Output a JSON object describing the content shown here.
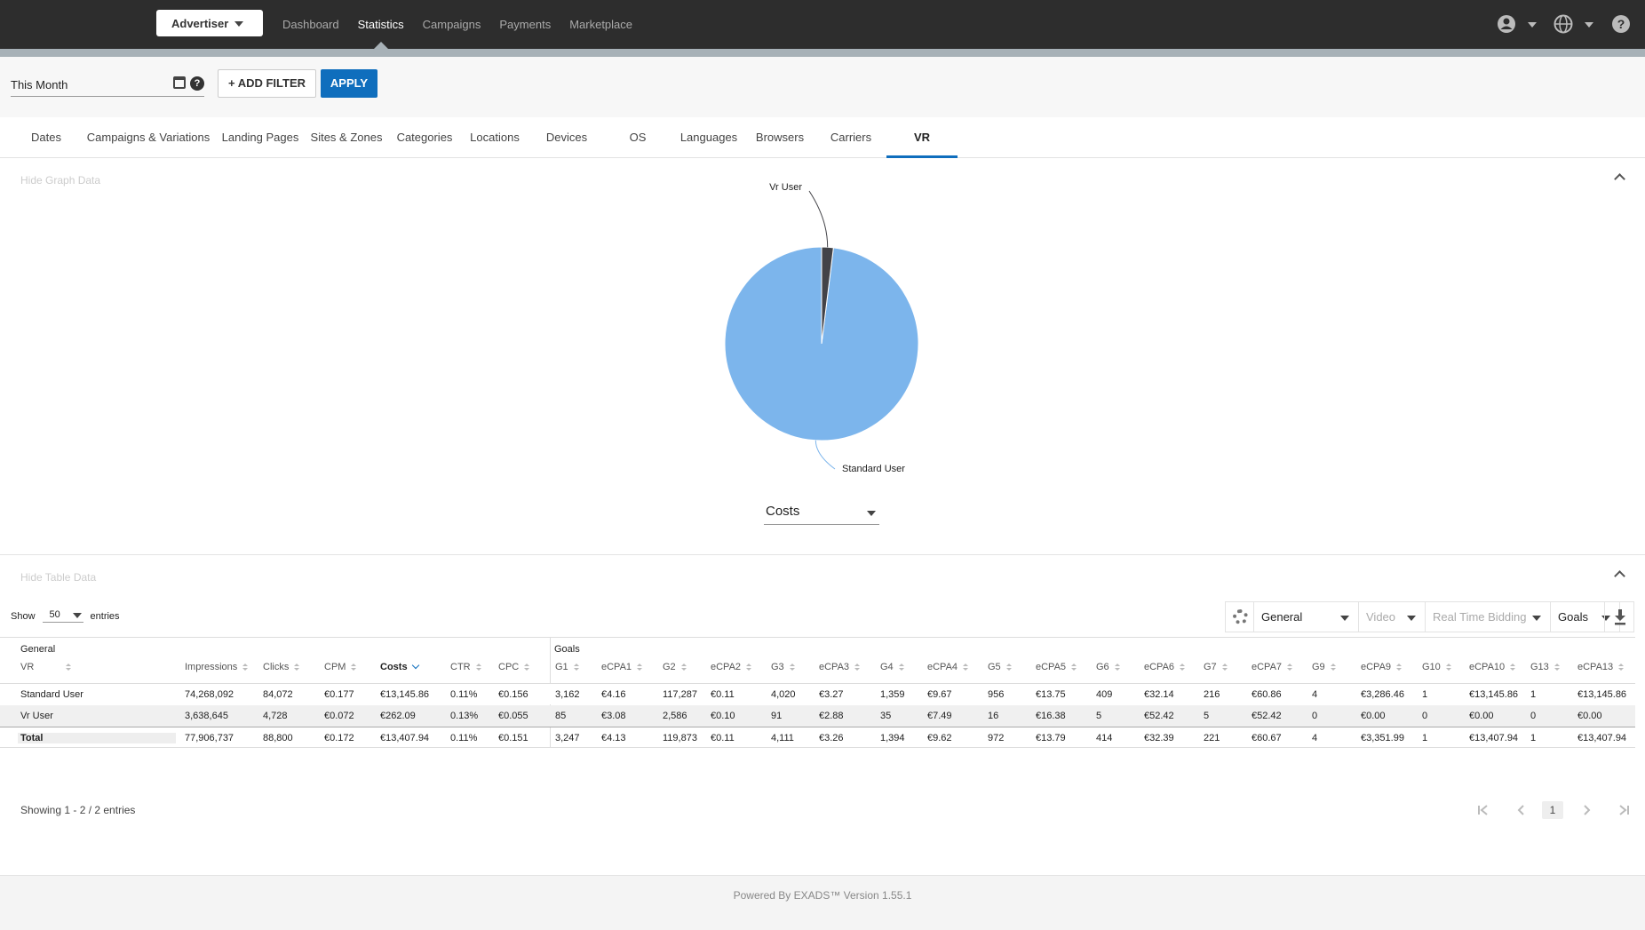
{
  "topbar": {
    "role": "Advertiser",
    "nav": [
      "Dashboard",
      "Statistics",
      "Campaigns",
      "Payments",
      "Marketplace"
    ],
    "active_nav": "Statistics",
    "icons": [
      "user-icon",
      "globe-icon",
      "help-icon"
    ]
  },
  "filters": {
    "date_range": "This Month",
    "add_filter_label": "+ ADD FILTER",
    "apply_label": "APPLY"
  },
  "tabs": [
    "Dates",
    "Campaigns & Variations",
    "Landing Pages",
    "Sites & Zones",
    "Categories",
    "Locations",
    "Devices",
    "OS",
    "Languages",
    "Browsers",
    "Carriers",
    "VR"
  ],
  "active_tab": "VR",
  "graph": {
    "toggle_label": "Hide Graph Data",
    "metric": "Costs"
  },
  "chart_data": {
    "type": "pie",
    "categories": [
      "Standard User",
      "Vr User"
    ],
    "values": [
      13145.86,
      262.09
    ],
    "colors": [
      "#7cb5ec",
      "#434348"
    ]
  },
  "table": {
    "toggle_label": "Hide Table Data",
    "show_label": "Show",
    "entries_value": "50",
    "entries_label": "entries",
    "column_sets": [
      "General",
      "Video",
      "Real Time Bidding",
      "Goals"
    ],
    "group_labels": [
      "General",
      "Goals"
    ],
    "headers": [
      "VR",
      "Impressions",
      "Clicks",
      "CPM",
      "Costs",
      "CTR",
      "CPC",
      "G1",
      "eCPA1",
      "G2",
      "eCPA2",
      "G3",
      "eCPA3",
      "G4",
      "eCPA4",
      "G5",
      "eCPA5",
      "G6",
      "eCPA6",
      "G7",
      "eCPA7",
      "G9",
      "eCPA9",
      "G10",
      "eCPA10",
      "G13",
      "eCPA13"
    ],
    "sorted_column": "Costs",
    "rows": [
      [
        "Standard User",
        "74,268,092",
        "84,072",
        "€0.177",
        "€13,145.86",
        "0.11%",
        "€0.156",
        "3,162",
        "€4.16",
        "117,287",
        "€0.11",
        "4,020",
        "€3.27",
        "1,359",
        "€9.67",
        "956",
        "€13.75",
        "409",
        "€32.14",
        "216",
        "€60.86",
        "4",
        "€3,286.46",
        "1",
        "€13,145.86",
        "1",
        "€13,145.86"
      ],
      [
        "Vr User",
        "3,638,645",
        "4,728",
        "€0.072",
        "€262.09",
        "0.13%",
        "€0.055",
        "85",
        "€3.08",
        "2,586",
        "€0.10",
        "91",
        "€2.88",
        "35",
        "€7.49",
        "16",
        "€16.38",
        "5",
        "€52.42",
        "5",
        "€52.42",
        "0",
        "€0.00",
        "0",
        "€0.00",
        "0",
        "€0.00"
      ],
      [
        "Total",
        "77,906,737",
        "88,800",
        "€0.172",
        "€13,407.94",
        "0.11%",
        "€0.151",
        "3,247",
        "€4.13",
        "119,873",
        "€0.11",
        "4,111",
        "€3.26",
        "1,394",
        "€9.62",
        "972",
        "€13.79",
        "414",
        "€32.39",
        "221",
        "€60.67",
        "4",
        "€3,351.99",
        "1",
        "€13,407.94",
        "1",
        "€13,407.94"
      ]
    ],
    "showing_text": "Showing 1 - 2 / 2 entries",
    "current_page": "1"
  },
  "footer": {
    "text": "Powered By EXADS™ Version 1.55.1"
  }
}
